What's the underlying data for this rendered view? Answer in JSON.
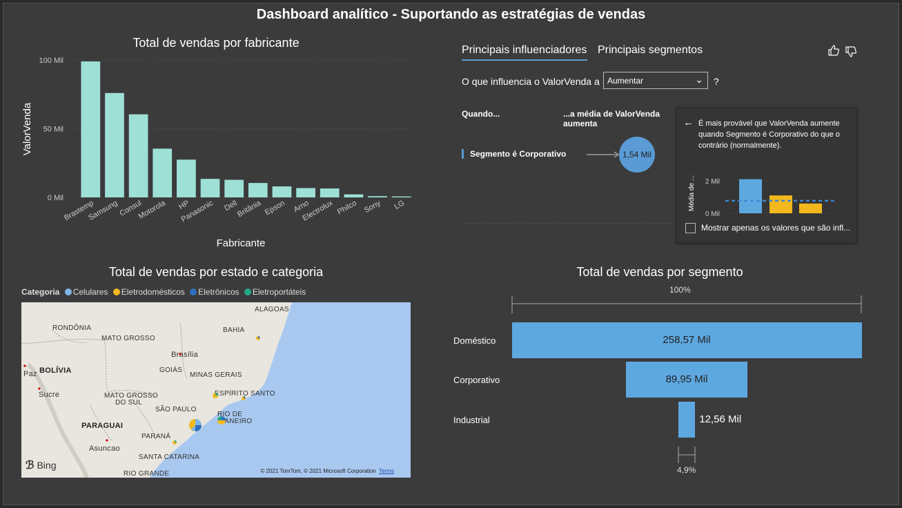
{
  "dashboard": {
    "title": "Dashboard analítico - Suportando as estratégias de vendas"
  },
  "bar_visual": {
    "title": "Total de vendas por fabricante",
    "chart_data": {
      "type": "bar",
      "title": "Total de vendas por fabricante",
      "xlabel": "Fabricante",
      "ylabel": "ValorVenda",
      "categories": [
        "Brastemp",
        "Samsung",
        "Consul",
        "Motorola",
        "HP",
        "Panasonic",
        "Dell",
        "Britânia",
        "Epson",
        "Arno",
        "Electrolux",
        "Philco",
        "Sony",
        "LG"
      ],
      "values": [
        99,
        76,
        60.5,
        35.5,
        27.5,
        13.5,
        12.8,
        10.5,
        8,
        6.8,
        6.5,
        2.2,
        0.9,
        0.7
      ],
      "yticks": [
        "0 Mil",
        "50 Mil",
        "100 Mil"
      ],
      "ylim": [
        0,
        100
      ],
      "grid": true,
      "color": "#9ee0d6"
    }
  },
  "key_influencers": {
    "tab_active": "Principais influenciadores",
    "tab_other": "Principais segmentos",
    "question": "O que influencia o ValorVenda a",
    "dropdown_value": "Aumentar",
    "question_mark": "?",
    "col_when": "Quando...",
    "col_avg_line1": "...a média de ValorVenda",
    "col_avg_line2": "aumenta",
    "influencer": "Segmento é Corporativo",
    "bubble_value": "1,54 Mil",
    "detail_text": "É mais provável que ValorVenda aumente quando Segmento é Corporativo do que o contrário (normalmente).",
    "detail_ylabel": "Média de ...",
    "detail_yticks": [
      "0 Mil",
      "2 Mil"
    ],
    "detail_bars": [
      2.1,
      1.1,
      0.6
    ],
    "detail_bar_colors": [
      "#5ea8e0",
      "#f2b81d",
      "#f2b81d"
    ],
    "detail_avg": 0.6,
    "checkbox_label": "Mostrar apenas os valores que são infl...",
    "thumb_up": "thumbs-up-icon",
    "thumb_down": "thumbs-down-icon"
  },
  "map_visual": {
    "title": "Total de vendas por estado e categoria",
    "legend_title": "Categoria",
    "legend": [
      {
        "name": "Celulares",
        "color": "#7fb8e8"
      },
      {
        "name": "Eletrodomésticos",
        "color": "#f2b81d"
      },
      {
        "name": "Eletrônicos",
        "color": "#2e6fbd"
      },
      {
        "name": "Eletroportáteis",
        "color": "#1fa98a"
      }
    ],
    "labels": [
      "ALAGOAS",
      "RONDÔNIA",
      "BAHIA",
      "MATO GROSSO",
      "Brasília",
      "BOLÍVIA",
      "GOIÁS",
      "MINAS GERAIS",
      "Paz",
      "Sucre",
      "MATO GROSSO",
      "DO SUL",
      "ESPÍRITO SANTO",
      "SÃO PAULO",
      "RIO DE",
      "JANEIRO",
      "PARAGUAI",
      "PARANÁ",
      "Asuncao",
      "SANTA CATARINA",
      "RIO GRANDE"
    ],
    "bing": "Bing",
    "copyright": "© 2021 TomTom, © 2021 Microsoft Corporation",
    "terms": "Terms"
  },
  "funnel_visual": {
    "title": "Total de vendas por segmento",
    "top_pct": "100%",
    "bottom_pct": "4,9%",
    "chart_data": {
      "type": "bar",
      "title": "Total de vendas por segmento",
      "categories": [
        "Doméstico",
        "Corporativo",
        "Industrial"
      ],
      "values": [
        258.57,
        89.95,
        12.56
      ],
      "value_labels": [
        "258,57 Mil",
        "89,95 Mil",
        "12,56 Mil"
      ],
      "color": "#5ea8e0"
    }
  }
}
